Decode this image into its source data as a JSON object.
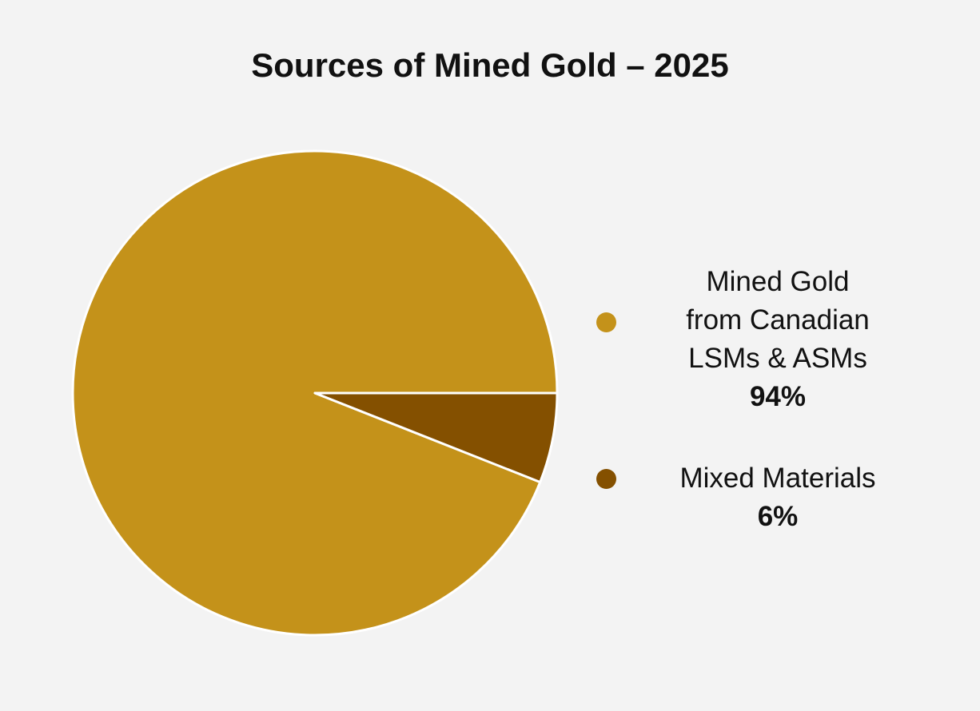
{
  "chart_data": {
    "type": "pie",
    "title": "Sources of Mined Gold – 2025",
    "categories": [
      "Mined Gold\nfrom Canadian\nLSMs & ASMs",
      "Mixed Materials"
    ],
    "values": [
      94,
      6
    ],
    "value_labels": [
      "94%",
      "6%"
    ],
    "colors": [
      "#c4921a",
      "#845000"
    ]
  }
}
